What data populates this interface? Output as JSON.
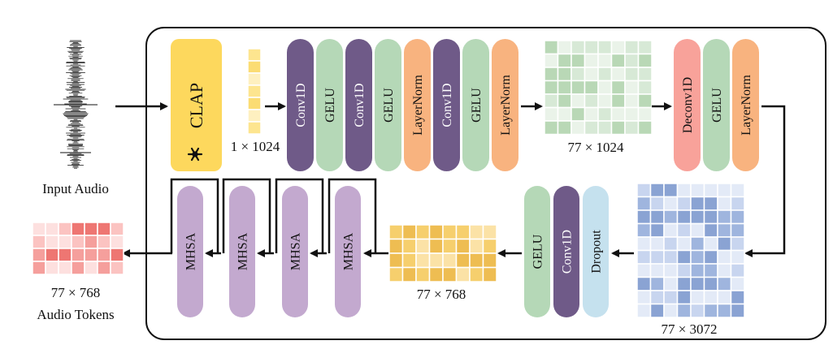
{
  "input": {
    "label": "Input Audio"
  },
  "clap": {
    "label": "CLAP",
    "frozen_icon": "snowflake-icon",
    "output_dim": "1 × 1024"
  },
  "encoder_blocks": [
    {
      "label": "Conv1D",
      "color": "#6f5a88",
      "text_color": "#ffffff"
    },
    {
      "label": "GELU",
      "color": "#b5d8b7",
      "text_color": "#111111"
    },
    {
      "label": "Conv1D",
      "color": "#6f5a88",
      "text_color": "#ffffff"
    },
    {
      "label": "GELU",
      "color": "#b5d8b7",
      "text_color": "#111111"
    },
    {
      "label": "LayerNorm",
      "color": "#f8b37f",
      "text_color": "#111111"
    },
    {
      "label": "Conv1D",
      "color": "#6f5a88",
      "text_color": "#ffffff"
    },
    {
      "label": "GELU",
      "color": "#b5d8b7",
      "text_color": "#111111"
    },
    {
      "label": "LayerNorm",
      "color": "#f8b37f",
      "text_color": "#111111"
    }
  ],
  "matrix_green": {
    "label": "77 × 1024"
  },
  "decoder_blocks": [
    {
      "label": "Deconv1D",
      "color": "#f8a29a",
      "text_color": "#111111"
    },
    {
      "label": "GELU",
      "color": "#b5d8b7",
      "text_color": "#111111"
    },
    {
      "label": "LayerNorm",
      "color": "#f8b37f",
      "text_color": "#111111"
    }
  ],
  "matrix_blue": {
    "label": "77 × 3072"
  },
  "projection_blocks": [
    {
      "label": "GELU",
      "color": "#b5d8b7",
      "text_color": "#111111"
    },
    {
      "label": "Conv1D",
      "color": "#6f5a88",
      "text_color": "#ffffff"
    },
    {
      "label": "Dropout",
      "color": "#c5e1ee",
      "text_color": "#111111"
    }
  ],
  "matrix_yellow": {
    "label": "77 × 768"
  },
  "attention_blocks": [
    {
      "label": "MHSA",
      "color": "#c3a9cf"
    },
    {
      "label": "MHSA",
      "color": "#c3a9cf"
    },
    {
      "label": "MHSA",
      "color": "#c3a9cf"
    },
    {
      "label": "MHSA",
      "color": "#c3a9cf"
    }
  ],
  "output": {
    "dim": "77 × 768",
    "label": "Audio Tokens"
  },
  "colors": {
    "clap": "#fdd85d",
    "clap_vector": "#fde58f",
    "green_cells": [
      "#d7e9d6",
      "#b9d8b6",
      "#eaf3e9"
    ],
    "blue_cells": [
      "#c8d5ef",
      "#9fb5de",
      "#e3eaf7",
      "#8aa3d3"
    ],
    "yellow_cells": [
      "#fbe2a6",
      "#f6cf6d",
      "#eebd52"
    ],
    "red_cells": [
      "#fbc3c1",
      "#f59f9c",
      "#ee7672",
      "#fde0df"
    ]
  }
}
